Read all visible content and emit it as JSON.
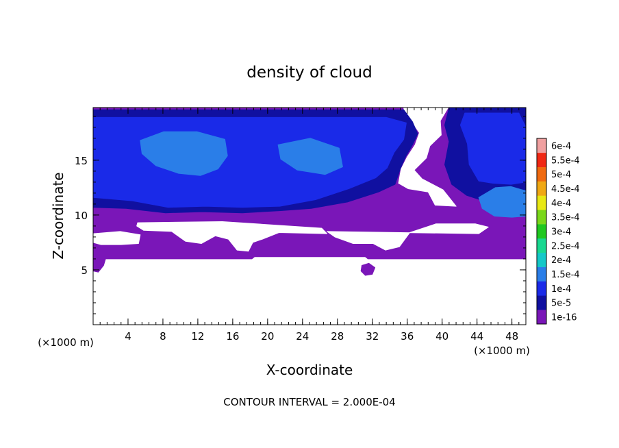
{
  "chart_data": {
    "type": "heatmap",
    "title": "density of cloud",
    "xlabel": "X-coordinate",
    "ylabel": "Z-coordinate",
    "x_unit": "(×1000 m)",
    "z_unit": "(×1000 m)",
    "footer": "CONTOUR INTERVAL = 2.000E-04",
    "xlim": [
      0,
      49.6
    ],
    "ylim": [
      0,
      19.8
    ],
    "x_ticks": [
      4,
      8,
      12,
      16,
      20,
      24,
      28,
      32,
      36,
      40,
      44,
      48
    ],
    "y_ticks": [
      5,
      10,
      15
    ],
    "x_minor_step": 0.8,
    "y_minor_step": 1,
    "colorbar": {
      "labels": [
        "1e-16",
        "5e-5",
        "1e-4",
        "1.5e-4",
        "2e-4",
        "2.5e-4",
        "3e-4",
        "3.5e-4",
        "4e-4",
        "4.5e-4",
        "5e-4",
        "5.5e-4",
        "6e-4"
      ],
      "colors": [
        "#7a16b8",
        "#1010a0",
        "#1a2ae8",
        "#2a7ee8",
        "#14c8c8",
        "#18d890",
        "#20c820",
        "#7ad81a",
        "#e8e814",
        "#f0a814",
        "#f06a10",
        "#f02814",
        "#f0a0a0"
      ]
    },
    "regions": [
      {
        "name": "purple-cloud-layer",
        "level": "1e-16",
        "color": "#7a16b8",
        "polygon": [
          [
            0,
            19.8
          ],
          [
            49.6,
            19.8
          ],
          [
            49.6,
            6
          ],
          [
            31.5,
            6
          ],
          [
            31.2,
            6.2
          ],
          [
            18.5,
            6.2
          ],
          [
            18.2,
            6
          ],
          [
            0,
            6
          ]
        ]
      },
      {
        "name": "low-purple-blob",
        "level": "1e-16",
        "color": "#7a16b8",
        "polygon": [
          [
            0,
            6.2
          ],
          [
            1.5,
            6.2
          ],
          [
            1.2,
            5.4
          ],
          [
            0.6,
            4.8
          ],
          [
            0,
            4.9
          ]
        ]
      },
      {
        "name": "purple-blob-x32",
        "level": "1e-16",
        "color": "#7a16b8",
        "polygon": [
          [
            30.8,
            5.4
          ],
          [
            31.6,
            5.6
          ],
          [
            32.3,
            5.2
          ],
          [
            32,
            4.6
          ],
          [
            31.2,
            4.5
          ],
          [
            30.7,
            4.9
          ]
        ]
      },
      {
        "name": "clear-gap-upper-right",
        "level": "clear",
        "color": "#ffffff",
        "polygon": [
          [
            35.6,
            19.8
          ],
          [
            40.7,
            19.8
          ],
          [
            39.8,
            18.6
          ],
          [
            39.9,
            17.3
          ],
          [
            38.6,
            16.3
          ],
          [
            38.2,
            15.2
          ],
          [
            36.8,
            14.1
          ],
          [
            37.7,
            13.3
          ],
          [
            40.1,
            12.3
          ],
          [
            41.6,
            10.8
          ],
          [
            39.2,
            10.9
          ],
          [
            38.4,
            12.1
          ],
          [
            36.1,
            12.4
          ],
          [
            35,
            12.9
          ],
          [
            35.3,
            14.2
          ],
          [
            36,
            15.3
          ],
          [
            36.9,
            16.4
          ],
          [
            37.4,
            17.5
          ],
          [
            36.6,
            18.4
          ],
          [
            35.8,
            18.7
          ]
        ]
      },
      {
        "name": "clear-gap-mid",
        "level": "clear",
        "color": "#ffffff",
        "polygon": [
          [
            5.1,
            9.3
          ],
          [
            14.8,
            9.4
          ],
          [
            26.2,
            8.8
          ],
          [
            26.8,
            8.3
          ],
          [
            21.3,
            8.4
          ],
          [
            19.4,
            7.8
          ],
          [
            18.3,
            7.5
          ],
          [
            17.8,
            6.7
          ],
          [
            16.5,
            6.8
          ],
          [
            15.5,
            7.8
          ],
          [
            14,
            8.1
          ],
          [
            12.4,
            7.4
          ],
          [
            10.6,
            7.6
          ],
          [
            9,
            8.5
          ],
          [
            5.8,
            8.6
          ],
          [
            5,
            9
          ]
        ]
      },
      {
        "name": "clear-gap-right",
        "level": "clear",
        "color": "#ffffff",
        "polygon": [
          [
            26.8,
            8.5
          ],
          [
            44.2,
            8.3
          ],
          [
            45.3,
            8.9
          ],
          [
            43.8,
            9.2
          ],
          [
            39.3,
            9.2
          ],
          [
            36.3,
            8.4
          ],
          [
            35.1,
            7.1
          ],
          [
            33.5,
            6.8
          ],
          [
            32.1,
            7.4
          ],
          [
            29.8,
            7.4
          ],
          [
            27.7,
            8
          ]
        ]
      },
      {
        "name": "clear-gap-left",
        "level": "clear",
        "color": "#ffffff",
        "polygon": [
          [
            0,
            8.3
          ],
          [
            3.1,
            8.5
          ],
          [
            5.4,
            8.2
          ],
          [
            5.2,
            7.4
          ],
          [
            3.2,
            7.3
          ],
          [
            0.9,
            7.3
          ],
          [
            0,
            7.5
          ]
        ]
      },
      {
        "name": "deep-blue-band",
        "level": "5e-5",
        "color": "#1010a0",
        "polygon": [
          [
            0,
            19.6
          ],
          [
            35.6,
            19.6
          ],
          [
            36.6,
            18.5
          ],
          [
            37.2,
            17.4
          ],
          [
            36.6,
            16.4
          ],
          [
            35.8,
            15.3
          ],
          [
            35.2,
            14.2
          ],
          [
            34.6,
            12.8
          ],
          [
            32.7,
            12.1
          ],
          [
            29.2,
            11.2
          ],
          [
            25,
            10.6
          ],
          [
            21.5,
            10.4
          ],
          [
            17.1,
            10.2
          ],
          [
            12.5,
            10.3
          ],
          [
            8.3,
            10.2
          ],
          [
            3.8,
            10.6
          ],
          [
            0,
            10.7
          ]
        ]
      },
      {
        "name": "deep-blue-right",
        "level": "5e-5",
        "color": "#1010a0",
        "polygon": [
          [
            40.8,
            19.8
          ],
          [
            49.6,
            19.8
          ],
          [
            49.6,
            10
          ],
          [
            47.3,
            10.7
          ],
          [
            45.1,
            11.2
          ],
          [
            42.8,
            11.8
          ],
          [
            41.1,
            12.8
          ],
          [
            40.3,
            14.6
          ],
          [
            40.8,
            16.7
          ],
          [
            40.3,
            18.2
          ]
        ]
      },
      {
        "name": "blue-core-main",
        "level": "1e-4",
        "color": "#1a2ae8",
        "polygon": [
          [
            0,
            18.9
          ],
          [
            33.6,
            18.9
          ],
          [
            35.9,
            18.4
          ],
          [
            35.6,
            16.9
          ],
          [
            34.5,
            15.7
          ],
          [
            33.7,
            14.3
          ],
          [
            32.4,
            13.4
          ],
          [
            29.3,
            12.4
          ],
          [
            25.5,
            11.4
          ],
          [
            21.4,
            10.8
          ],
          [
            17.1,
            10.7
          ],
          [
            12.9,
            10.8
          ],
          [
            8.6,
            10.7
          ],
          [
            4.5,
            11.3
          ],
          [
            0,
            11.6
          ]
        ]
      },
      {
        "name": "blue-core-right",
        "level": "1e-4",
        "color": "#1a2ae8",
        "polygon": [
          [
            42.6,
            19.3
          ],
          [
            48.8,
            19.3
          ],
          [
            49.6,
            18
          ],
          [
            49.6,
            13
          ],
          [
            47.9,
            12.8
          ],
          [
            45.8,
            12.9
          ],
          [
            44.2,
            13.1
          ],
          [
            43.1,
            14.6
          ],
          [
            42.9,
            16.5
          ],
          [
            42.1,
            18.2
          ]
        ]
      },
      {
        "name": "light-blue-core-left",
        "level": "1.5e-4",
        "color": "#2a7ee8",
        "polygon": [
          [
            5.4,
            16.8
          ],
          [
            8.1,
            17.6
          ],
          [
            11.9,
            17.6
          ],
          [
            15.1,
            16.9
          ],
          [
            15.4,
            15.4
          ],
          [
            14.3,
            14.2
          ],
          [
            12.3,
            13.6
          ],
          [
            9.8,
            13.8
          ],
          [
            7.2,
            14.5
          ],
          [
            5.6,
            15.6
          ]
        ]
      },
      {
        "name": "light-blue-core-mid",
        "level": "1.5e-4",
        "color": "#2a7ee8",
        "polygon": [
          [
            21.2,
            16.4
          ],
          [
            24.9,
            17
          ],
          [
            28.2,
            16.1
          ],
          [
            28.6,
            14.4
          ],
          [
            26.6,
            13.7
          ],
          [
            23.4,
            14.1
          ],
          [
            21.5,
            15.1
          ]
        ]
      },
      {
        "name": "teal-patch-right",
        "level": "1.5e-4",
        "color": "#2a7ee8",
        "polygon": [
          [
            44.2,
            11.6
          ],
          [
            46.1,
            12.5
          ],
          [
            47.9,
            12.6
          ],
          [
            49.6,
            12.2
          ],
          [
            49.6,
            9.9
          ],
          [
            48,
            9.8
          ],
          [
            46,
            9.9
          ],
          [
            44.6,
            10.6
          ]
        ]
      }
    ]
  }
}
